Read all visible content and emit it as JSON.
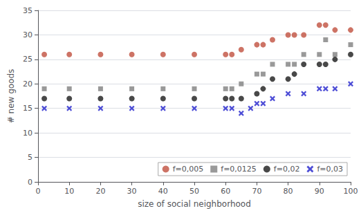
{
  "chart_data": {
    "type": "scatter",
    "xlabel": "size of social neighborhood",
    "ylabel": "# new goods",
    "xlim": [
      0,
      100
    ],
    "ylim": [
      0,
      35
    ],
    "xticks": [
      0,
      10,
      20,
      30,
      40,
      50,
      60,
      70,
      80,
      90,
      100
    ],
    "yticks": [
      0,
      5,
      10,
      15,
      20,
      25,
      30,
      35
    ],
    "grid": "y",
    "legend": "lower right",
    "series": [
      {
        "name": "f=0,005",
        "color": "#c0503e",
        "marker": "circle",
        "x": [
          2,
          10,
          20,
          30,
          40,
          50,
          60,
          62,
          65,
          70,
          72,
          75,
          80,
          82,
          85,
          90,
          92,
          95,
          100
        ],
        "values": [
          26,
          26,
          26,
          26,
          26,
          26,
          26,
          26,
          27,
          28,
          28,
          29,
          30,
          30,
          30,
          32,
          32,
          31,
          31
        ]
      },
      {
        "name": "f=0,0125",
        "color": "#808080",
        "marker": "square",
        "x": [
          2,
          10,
          20,
          30,
          40,
          50,
          60,
          62,
          65,
          70,
          72,
          75,
          80,
          82,
          85,
          90,
          92,
          95,
          100
        ],
        "values": [
          19,
          19,
          19,
          19,
          19,
          19,
          19,
          19,
          20,
          22,
          22,
          24,
          24,
          24,
          26,
          26,
          29,
          26,
          28
        ]
      },
      {
        "name": "f=0,02",
        "color": "#1a1a1a",
        "marker": "circle",
        "x": [
          2,
          10,
          20,
          30,
          40,
          50,
          60,
          62,
          65,
          70,
          72,
          75,
          80,
          82,
          85,
          90,
          92,
          95,
          100
        ],
        "values": [
          17,
          17,
          17,
          17,
          17,
          17,
          17,
          17,
          17,
          18,
          19,
          21,
          21,
          22,
          24,
          24,
          24,
          25,
          26
        ]
      },
      {
        "name": "f=0,03",
        "color": "#2020cc",
        "marker": "x",
        "x": [
          2,
          10,
          20,
          30,
          40,
          50,
          60,
          62,
          65,
          68,
          70,
          72,
          75,
          80,
          85,
          90,
          92,
          95,
          100
        ],
        "values": [
          15,
          15,
          15,
          15,
          15,
          15,
          15,
          15,
          14,
          15,
          16,
          16,
          17,
          18,
          18,
          19,
          19,
          19,
          20
        ]
      }
    ]
  }
}
